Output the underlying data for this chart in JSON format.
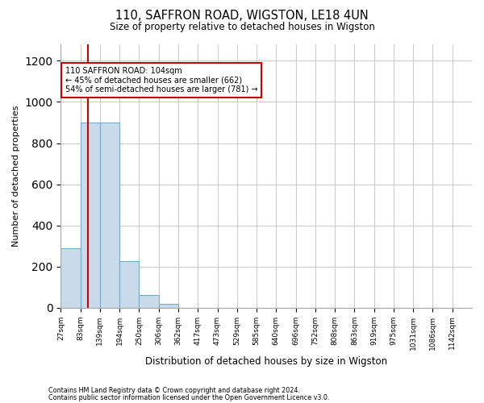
{
  "title": "110, SAFFRON ROAD, WIGSTON, LE18 4UN",
  "subtitle": "Size of property relative to detached houses in Wigston",
  "xlabel": "Distribution of detached houses by size in Wigston",
  "ylabel": "Number of detached properties",
  "bin_labels": [
    "27sqm",
    "83sqm",
    "139sqm",
    "194sqm",
    "250sqm",
    "306sqm",
    "362sqm",
    "417sqm",
    "473sqm",
    "529sqm",
    "585sqm",
    "640sqm",
    "696sqm",
    "752sqm",
    "808sqm",
    "863sqm",
    "919sqm",
    "975sqm",
    "1031sqm",
    "1086sqm",
    "1142sqm"
  ],
  "bar_heights": [
    290,
    900,
    900,
    225,
    60,
    20,
    0,
    0,
    0,
    0,
    0,
    0,
    0,
    0,
    0,
    0,
    0,
    0,
    0,
    0,
    0
  ],
  "bar_color": "#c9daea",
  "bar_edge_color": "#7baac8",
  "property_value": 104,
  "annotation_line1": "110 SAFFRON ROAD: 104sqm",
  "annotation_line2": "← 45% of detached houses are smaller (662)",
  "annotation_line3": "54% of semi-detached houses are larger (781) →",
  "red_line_color": "#cc0000",
  "annotation_box_edge": "#cc0000",
  "annotation_box_face": "#ffffff",
  "ylim": [
    0,
    1280
  ],
  "yticks": [
    0,
    200,
    400,
    600,
    800,
    1000,
    1200
  ],
  "footer_line1": "Contains HM Land Registry data © Crown copyright and database right 2024.",
  "footer_line2": "Contains public sector information licensed under the Open Government Licence v3.0.",
  "background_color": "#ffffff",
  "grid_color": "#cccccc",
  "bin_edges": [
    27,
    83,
    139,
    194,
    250,
    306,
    362,
    417,
    473,
    529,
    585,
    640,
    696,
    752,
    808,
    863,
    919,
    975,
    1031,
    1086,
    1142,
    1198
  ]
}
